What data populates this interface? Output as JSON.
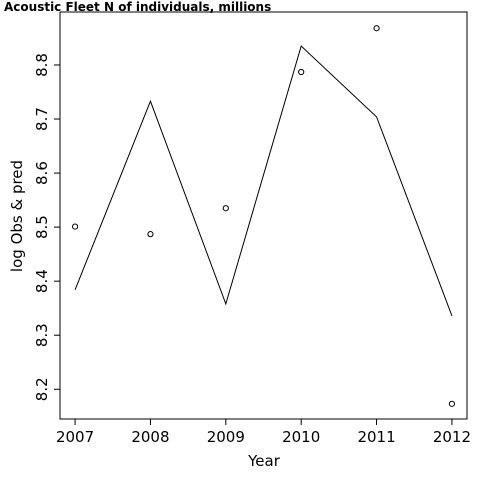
{
  "chart_data": {
    "type": "line",
    "title": "Acoustic Fleet   N of individuals, millions",
    "xlabel": "Year",
    "ylabel": "log Obs & pred",
    "x": [
      2007,
      2008,
      2009,
      2010,
      2011,
      2012
    ],
    "xlim": [
      2006.8,
      2012.2
    ],
    "ylim": [
      8.145,
      8.898
    ],
    "xticks": [
      "2007",
      "2008",
      "2009",
      "2010",
      "2011",
      "2012"
    ],
    "yticks": [
      "8.2",
      "8.3",
      "8.4",
      "8.5",
      "8.6",
      "8.7",
      "8.8"
    ],
    "series": [
      {
        "kind": "line",
        "values": [
          8.384,
          8.733,
          8.358,
          8.835,
          8.704,
          8.336
        ]
      },
      {
        "kind": "points",
        "values": [
          8.501,
          8.487,
          8.535,
          8.787,
          8.868,
          8.173
        ]
      }
    ],
    "grid": false,
    "legend": "none"
  }
}
